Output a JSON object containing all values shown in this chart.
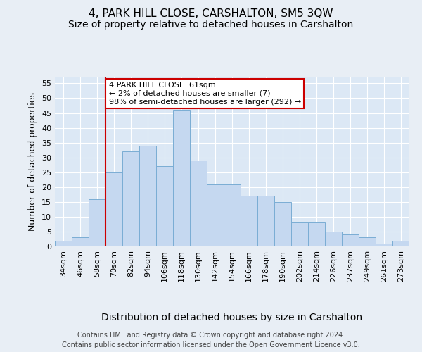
{
  "title": "4, PARK HILL CLOSE, CARSHALTON, SM5 3QW",
  "subtitle": "Size of property relative to detached houses in Carshalton",
  "xlabel": "Distribution of detached houses by size in Carshalton",
  "ylabel": "Number of detached properties",
  "categories": [
    "34sqm",
    "46sqm",
    "58sqm",
    "70sqm",
    "82sqm",
    "94sqm",
    "106sqm",
    "118sqm",
    "130sqm",
    "142sqm",
    "154sqm",
    "166sqm",
    "178sqm",
    "190sqm",
    "202sqm",
    "214sqm",
    "226sqm",
    "237sqm",
    "249sqm",
    "261sqm",
    "273sqm"
  ],
  "values": [
    2,
    3,
    16,
    25,
    32,
    34,
    27,
    46,
    29,
    21,
    21,
    17,
    17,
    15,
    8,
    8,
    5,
    4,
    3,
    1,
    2
  ],
  "bar_color": "#c5d8f0",
  "bar_edge_color": "#7aadd4",
  "red_line_index": 2,
  "annotation_text": "4 PARK HILL CLOSE: 61sqm\n← 2% of detached houses are smaller (7)\n98% of semi-detached houses are larger (292) →",
  "annotation_box_color": "#ffffff",
  "annotation_box_edge": "#cc0000",
  "ylim": [
    0,
    57
  ],
  "yticks": [
    0,
    5,
    10,
    15,
    20,
    25,
    30,
    35,
    40,
    45,
    50,
    55
  ],
  "background_color": "#e8eef5",
  "plot_bg_color": "#dce8f5",
  "footer": "Contains HM Land Registry data © Crown copyright and database right 2024.\nContains public sector information licensed under the Open Government Licence v3.0.",
  "title_fontsize": 11,
  "subtitle_fontsize": 10,
  "xlabel_fontsize": 10,
  "ylabel_fontsize": 9,
  "tick_fontsize": 8,
  "footer_fontsize": 7,
  "red_line_color": "#cc0000",
  "grid_color": "#ffffff"
}
